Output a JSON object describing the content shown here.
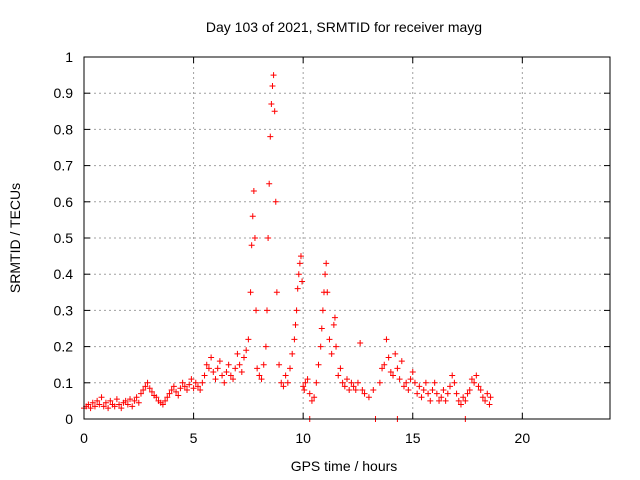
{
  "chart_data": {
    "type": "scatter",
    "title": "Day 103 of 2021, SRMTID for receiver mayg",
    "xlabel": "GPS time / hours",
    "ylabel": "SRMTID / TECUs",
    "xlim": [
      0,
      24
    ],
    "ylim": [
      0,
      1
    ],
    "xticks": [
      0,
      5,
      10,
      15,
      20
    ],
    "yticks": [
      0,
      0.1,
      0.2,
      0.3,
      0.4,
      0.5,
      0.6,
      0.7,
      0.8,
      0.9,
      1
    ],
    "xtick_labels": [
      "0",
      "5",
      "10",
      "15",
      "20"
    ],
    "ytick_labels": [
      "0",
      "0.1",
      "0.2",
      "0.3",
      "0.4",
      "0.5",
      "0.6",
      "0.7",
      "0.8",
      "0.9",
      "1"
    ],
    "grid": true,
    "marker": "plus",
    "series_color": "#ff0000",
    "series": [
      {
        "name": "SRMTID",
        "points": [
          [
            0.0,
            0.03
          ],
          [
            0.1,
            0.035
          ],
          [
            0.2,
            0.04
          ],
          [
            0.3,
            0.03
          ],
          [
            0.4,
            0.045
          ],
          [
            0.5,
            0.035
          ],
          [
            0.6,
            0.05
          ],
          [
            0.7,
            0.04
          ],
          [
            0.8,
            0.06
          ],
          [
            0.9,
            0.035
          ],
          [
            1.0,
            0.045
          ],
          [
            1.1,
            0.03
          ],
          [
            1.2,
            0.05
          ],
          [
            1.3,
            0.04
          ],
          [
            1.4,
            0.035
          ],
          [
            1.5,
            0.055
          ],
          [
            1.6,
            0.04
          ],
          [
            1.7,
            0.03
          ],
          [
            1.8,
            0.045
          ],
          [
            1.9,
            0.05
          ],
          [
            2.0,
            0.04
          ],
          [
            2.1,
            0.055
          ],
          [
            2.2,
            0.035
          ],
          [
            2.3,
            0.05
          ],
          [
            2.4,
            0.06
          ],
          [
            2.5,
            0.045
          ],
          [
            2.6,
            0.07
          ],
          [
            2.7,
            0.08
          ],
          [
            2.8,
            0.09
          ],
          [
            2.9,
            0.1
          ],
          [
            3.0,
            0.085
          ],
          [
            3.1,
            0.075
          ],
          [
            3.2,
            0.065
          ],
          [
            3.3,
            0.06
          ],
          [
            3.4,
            0.05
          ],
          [
            3.5,
            0.045
          ],
          [
            3.6,
            0.04
          ],
          [
            3.7,
            0.05
          ],
          [
            3.8,
            0.06
          ],
          [
            3.9,
            0.07
          ],
          [
            4.0,
            0.08
          ],
          [
            4.1,
            0.09
          ],
          [
            4.2,
            0.075
          ],
          [
            4.3,
            0.065
          ],
          [
            4.4,
            0.085
          ],
          [
            4.5,
            0.1
          ],
          [
            4.6,
            0.09
          ],
          [
            4.7,
            0.08
          ],
          [
            4.8,
            0.095
          ],
          [
            4.9,
            0.11
          ],
          [
            5.0,
            0.085
          ],
          [
            5.1,
            0.1
          ],
          [
            5.2,
            0.09
          ],
          [
            5.3,
            0.08
          ],
          [
            5.4,
            0.1
          ],
          [
            5.5,
            0.12
          ],
          [
            5.6,
            0.15
          ],
          [
            5.7,
            0.14
          ],
          [
            5.8,
            0.17
          ],
          [
            5.9,
            0.13
          ],
          [
            6.0,
            0.11
          ],
          [
            6.1,
            0.14
          ],
          [
            6.2,
            0.16
          ],
          [
            6.3,
            0.12
          ],
          [
            6.4,
            0.1
          ],
          [
            6.5,
            0.13
          ],
          [
            6.6,
            0.15
          ],
          [
            6.7,
            0.12
          ],
          [
            6.8,
            0.11
          ],
          [
            6.9,
            0.14
          ],
          [
            7.0,
            0.18
          ],
          [
            7.1,
            0.15
          ],
          [
            7.2,
            0.13
          ],
          [
            7.3,
            0.17
          ],
          [
            7.4,
            0.19
          ],
          [
            7.5,
            0.22
          ],
          [
            7.6,
            0.35
          ],
          [
            7.65,
            0.48
          ],
          [
            7.7,
            0.56
          ],
          [
            7.75,
            0.63
          ],
          [
            7.8,
            0.5
          ],
          [
            7.85,
            0.3
          ],
          [
            7.9,
            0.14
          ],
          [
            8.0,
            0.12
          ],
          [
            8.1,
            0.11
          ],
          [
            8.2,
            0.15
          ],
          [
            8.3,
            0.2
          ],
          [
            8.35,
            0.3
          ],
          [
            8.4,
            0.5
          ],
          [
            8.45,
            0.65
          ],
          [
            8.5,
            0.78
          ],
          [
            8.55,
            0.87
          ],
          [
            8.6,
            0.92
          ],
          [
            8.65,
            0.95
          ],
          [
            8.7,
            0.85
          ],
          [
            8.75,
            0.6
          ],
          [
            8.8,
            0.35
          ],
          [
            8.9,
            0.15
          ],
          [
            9.0,
            0.1
          ],
          [
            9.1,
            0.09
          ],
          [
            9.2,
            0.12
          ],
          [
            9.3,
            0.1
          ],
          [
            9.4,
            0.14
          ],
          [
            9.5,
            0.18
          ],
          [
            9.6,
            0.22
          ],
          [
            9.65,
            0.26
          ],
          [
            9.7,
            0.3
          ],
          [
            9.75,
            0.36
          ],
          [
            9.8,
            0.4
          ],
          [
            9.85,
            0.43
          ],
          [
            9.9,
            0.45
          ],
          [
            9.95,
            0.38
          ],
          [
            10.0,
            0.09
          ],
          [
            10.05,
            0.08
          ],
          [
            10.1,
            0.1
          ],
          [
            10.2,
            0.11
          ],
          [
            10.3,
            0.07
          ],
          [
            10.4,
            0.05
          ],
          [
            10.5,
            0.06
          ],
          [
            10.6,
            0.1
          ],
          [
            10.7,
            0.15
          ],
          [
            10.8,
            0.2
          ],
          [
            10.85,
            0.25
          ],
          [
            10.9,
            0.3
          ],
          [
            10.95,
            0.35
          ],
          [
            11.0,
            0.4
          ],
          [
            11.05,
            0.43
          ],
          [
            11.1,
            0.35
          ],
          [
            11.2,
            0.22
          ],
          [
            11.3,
            0.18
          ],
          [
            11.4,
            0.26
          ],
          [
            11.45,
            0.28
          ],
          [
            11.5,
            0.2
          ],
          [
            11.6,
            0.12
          ],
          [
            11.7,
            0.14
          ],
          [
            11.8,
            0.1
          ],
          [
            11.9,
            0.09
          ],
          [
            12.0,
            0.11
          ],
          [
            12.1,
            0.08
          ],
          [
            12.2,
            0.1
          ],
          [
            12.3,
            0.09
          ],
          [
            12.4,
            0.08
          ],
          [
            12.5,
            0.1
          ],
          [
            12.6,
            0.21
          ],
          [
            12.7,
            0.08
          ],
          [
            12.8,
            0.07
          ],
          [
            13.0,
            0.06
          ],
          [
            13.2,
            0.08
          ],
          [
            13.5,
            0.1
          ],
          [
            13.6,
            0.14
          ],
          [
            13.7,
            0.15
          ],
          [
            13.8,
            0.22
          ],
          [
            13.9,
            0.17
          ],
          [
            14.0,
            0.13
          ],
          [
            14.1,
            0.12
          ],
          [
            14.2,
            0.18
          ],
          [
            14.3,
            0.14
          ],
          [
            14.4,
            0.11
          ],
          [
            14.5,
            0.16
          ],
          [
            14.6,
            0.09
          ],
          [
            14.7,
            0.1
          ],
          [
            14.8,
            0.08
          ],
          [
            14.9,
            0.11
          ],
          [
            15.0,
            0.13
          ],
          [
            15.1,
            0.1
          ],
          [
            15.2,
            0.07
          ],
          [
            15.3,
            0.09
          ],
          [
            15.4,
            0.06
          ],
          [
            15.5,
            0.08
          ],
          [
            15.6,
            0.1
          ],
          [
            15.7,
            0.07
          ],
          [
            15.8,
            0.05
          ],
          [
            15.9,
            0.08
          ],
          [
            16.0,
            0.1
          ],
          [
            16.1,
            0.07
          ],
          [
            16.2,
            0.05
          ],
          [
            16.3,
            0.06
          ],
          [
            16.4,
            0.08
          ],
          [
            16.5,
            0.05
          ],
          [
            16.6,
            0.07
          ],
          [
            16.7,
            0.09
          ],
          [
            16.8,
            0.12
          ],
          [
            16.9,
            0.1
          ],
          [
            17.0,
            0.07
          ],
          [
            17.1,
            0.05
          ],
          [
            17.2,
            0.04
          ],
          [
            17.3,
            0.06
          ],
          [
            17.4,
            0.05
          ],
          [
            17.5,
            0.07
          ],
          [
            17.6,
            0.08
          ],
          [
            17.7,
            0.11
          ],
          [
            17.8,
            0.1
          ],
          [
            17.9,
            0.12
          ],
          [
            18.0,
            0.09
          ],
          [
            18.1,
            0.08
          ],
          [
            18.2,
            0.06
          ],
          [
            18.3,
            0.05
          ],
          [
            18.4,
            0.07
          ],
          [
            18.5,
            0.04
          ],
          [
            18.55,
            0.06
          ],
          [
            10.3,
            0.0
          ],
          [
            13.3,
            0.0
          ],
          [
            14.3,
            0.0
          ],
          [
            17.4,
            0.0
          ]
        ]
      }
    ]
  }
}
